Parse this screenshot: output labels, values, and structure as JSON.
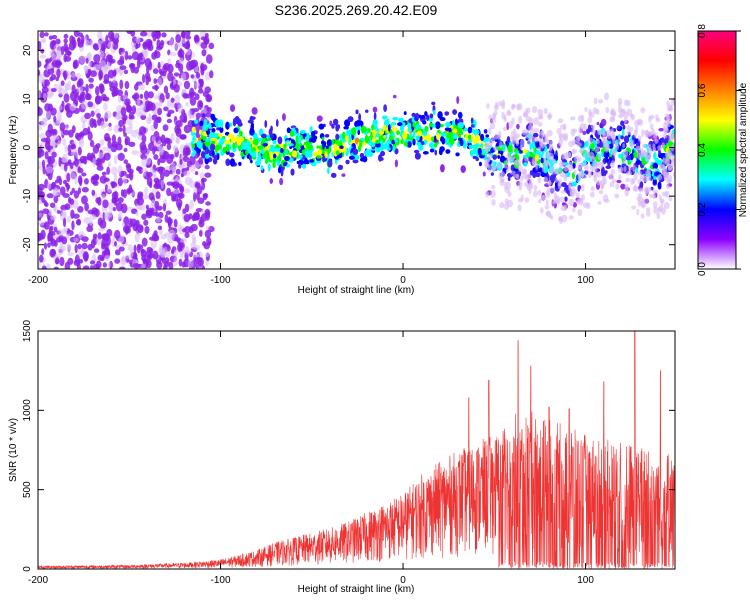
{
  "title": "S236.2025.269.20.42.E09",
  "chart_data": [
    {
      "type": "heatmap",
      "xlabel": "Height of straight line (km)",
      "ylabel": "Frequency (Hz)",
      "xlim": [
        -200,
        149
      ],
      "ylim": [
        -25,
        24
      ],
      "xticks": [
        -200,
        -100,
        0,
        100
      ],
      "yticks": [
        -20,
        -10,
        0,
        10,
        20
      ],
      "ridge": {
        "x": [
          -115,
          -100,
          -90,
          -80,
          -70,
          -60,
          -50,
          -40,
          -30,
          -20,
          -10,
          0,
          10,
          20,
          30,
          40,
          50,
          60,
          70,
          80,
          90,
          100,
          110,
          120,
          130,
          140,
          149
        ],
        "y": [
          2,
          2,
          1,
          0,
          -1,
          0,
          0,
          -1,
          1,
          2,
          3,
          3,
          3,
          3,
          3,
          1,
          -1,
          -2,
          -1,
          -3,
          -6,
          -2,
          0,
          0,
          -3,
          -4,
          2
        ]
      },
      "colorbar": {
        "label": "Normalized spectral amplitude",
        "range": [
          0.0,
          0.8
        ],
        "ticks": [
          "0.0",
          "0.2",
          "0.4",
          "0.6",
          "0.8"
        ],
        "colors": [
          "#ffffff",
          "#8b00ff",
          "#0000ff",
          "#00ffff",
          "#00ff00",
          "#ffff00",
          "#ff8000",
          "#ff0000",
          "#ff0080"
        ]
      }
    },
    {
      "type": "line",
      "xlabel": "Height of straight line (km)",
      "ylabel": "SNR (10 * v/v)",
      "xlim": [
        -200,
        149
      ],
      "ylim": [
        0,
        1500
      ],
      "xticks": [
        -200,
        -100,
        0,
        100
      ],
      "yticks": [
        0,
        500,
        1000,
        1500
      ],
      "color": "#ee3333",
      "envelope": {
        "x": [
          -200,
          -150,
          -120,
          -100,
          -90,
          -80,
          -70,
          -60,
          -50,
          -40,
          -30,
          -20,
          -10,
          0,
          10,
          20,
          30,
          40,
          50,
          55,
          60,
          70,
          80,
          90,
          100,
          110,
          120,
          130,
          140,
          149
        ],
        "y": [
          20,
          25,
          40,
          60,
          90,
          120,
          170,
          200,
          230,
          260,
          300,
          360,
          420,
          480,
          600,
          680,
          750,
          800,
          850,
          900,
          980,
          1000,
          950,
          900,
          850,
          820,
          800,
          780,
          760,
          700
        ]
      },
      "peaks": [
        {
          "x": 36,
          "y": 1080
        },
        {
          "x": 47,
          "y": 1190
        },
        {
          "x": 63,
          "y": 1440
        },
        {
          "x": 70,
          "y": 1280
        },
        {
          "x": 80,
          "y": 1020
        },
        {
          "x": 91,
          "y": 1010
        },
        {
          "x": 110,
          "y": 1180
        },
        {
          "x": 127,
          "y": 1500
        },
        {
          "x": 141,
          "y": 1250
        }
      ]
    }
  ]
}
